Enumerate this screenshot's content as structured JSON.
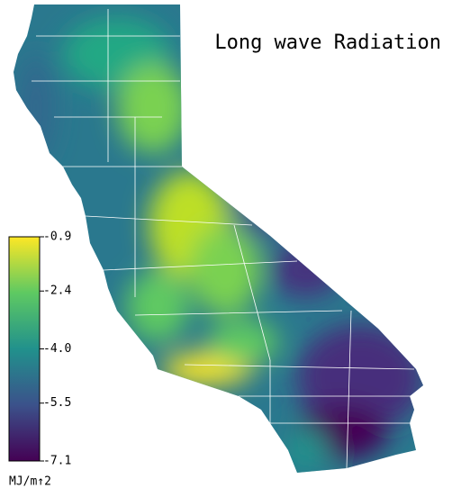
{
  "title": "Long wave Radiation",
  "colorbar": {
    "label": "MJ/m↑2",
    "lim": [
      -7.1,
      -0.9
    ],
    "ticks": [
      -0.9,
      -2.4,
      {
        "value": -4.0,
        "label": "-4.0"
      },
      -5.5,
      -7.1
    ],
    "colors": [
      "#440154",
      "#3b528b",
      "#21918c",
      "#5ec962",
      "#fde725"
    ]
  }
}
